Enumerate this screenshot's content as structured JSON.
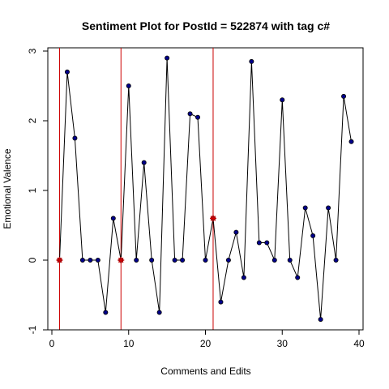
{
  "chart_data": {
    "type": "line",
    "title": "Sentiment Plot for PostId =  522874  with tag  c#",
    "xlabel": "Comments and Edits",
    "ylabel": "Emotional Valence",
    "xlim": [
      0,
      40
    ],
    "ylim": [
      -1,
      3
    ],
    "x_ticks": [
      "0",
      "10",
      "20",
      "30",
      "40"
    ],
    "y_ticks": [
      "-1",
      "0",
      "1",
      "2",
      "3"
    ],
    "grid": false,
    "colors": {
      "line": "#000000",
      "point_fill": "#00008B",
      "marker": "#CC0000",
      "vline": "#CC0000"
    },
    "x": [
      1,
      2,
      3,
      4,
      5,
      6,
      7,
      8,
      9,
      10,
      11,
      12,
      13,
      14,
      15,
      16,
      17,
      18,
      19,
      20,
      21,
      22,
      23,
      24,
      25,
      26,
      27,
      28,
      29,
      30,
      31,
      32,
      33,
      34,
      35,
      36,
      37,
      38,
      39
    ],
    "y": [
      0,
      2.7,
      1.75,
      0,
      0,
      0,
      -0.75,
      0.6,
      0,
      2.5,
      0,
      1.4,
      0,
      -0.75,
      2.9,
      0,
      0,
      2.1,
      2.05,
      0,
      0.6,
      -0.6,
      0,
      0.4,
      -0.25,
      2.85,
      0.25,
      0.25,
      0,
      2.3,
      0,
      -0.25,
      0.75,
      0.35,
      -0.85,
      0.75,
      0,
      2.35,
      1.7
    ],
    "star_markers": [
      {
        "x": 1,
        "y": 0
      },
      {
        "x": 9,
        "y": 0
      },
      {
        "x": 21,
        "y": 0.6
      }
    ],
    "vertical_lines": [
      1,
      9,
      21
    ]
  }
}
